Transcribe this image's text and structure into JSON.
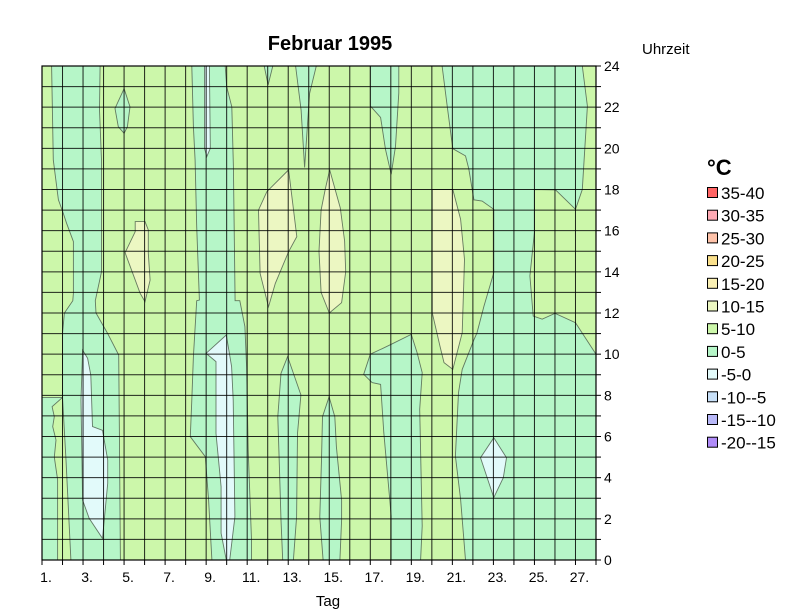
{
  "chart_data": {
    "type": "heatmap",
    "subtype": "filled-contour",
    "title": "Februar 1995",
    "xlabel": "Tag",
    "ylabel": "Uhrzeit",
    "xlim": [
      1,
      28
    ],
    "ylim": [
      0,
      24
    ],
    "x_ticks": [
      "1.",
      "3.",
      "5.",
      "7.",
      "9.",
      "11.",
      "13.",
      "15.",
      "17.",
      "19.",
      "21.",
      "23.",
      "25.",
      "27."
    ],
    "y_ticks": [
      "0",
      "2",
      "4",
      "6",
      "8",
      "10",
      "12",
      "14",
      "16",
      "18",
      "20",
      "22",
      "24"
    ],
    "y_axis_side": "right",
    "grid": true,
    "legend": {
      "title": "°C",
      "placement": "right",
      "entries": [
        {
          "label": "35-40",
          "color": "#ff6464"
        },
        {
          "label": "30-35",
          "color": "#ffaab4"
        },
        {
          "label": "25-30",
          "color": "#ffc3aa"
        },
        {
          "label": "20-25",
          "color": "#fae08c"
        },
        {
          "label": "15-20",
          "color": "#faf0b4"
        },
        {
          "label": "10-15",
          "color": "#ecf7c2"
        },
        {
          "label": "5-10",
          "color": "#ccf7aa"
        },
        {
          "label": "0-5",
          "color": "#b6f6c8"
        },
        {
          "label": "-5-0",
          "color": "#e2fafa"
        },
        {
          "label": "-10--5",
          "color": "#c8e0f8"
        },
        {
          "label": "-15--10",
          "color": "#b8b8f8"
        },
        {
          "label": "-20--15",
          "color": "#b08cf8"
        }
      ]
    },
    "background_class": "5-10",
    "regions": [
      {
        "class": "0-5",
        "points": [
          [
            1,
            0
          ],
          [
            1,
            24
          ],
          [
            3.83,
            24
          ],
          [
            3.8,
            21.86
          ],
          [
            3.9,
            19.43
          ],
          [
            3.9,
            14
          ],
          [
            3.6,
            12.6
          ],
          [
            3.63,
            12
          ],
          [
            4.2,
            11
          ],
          [
            4.74,
            9.96
          ],
          [
            4.77,
            6.15
          ],
          [
            4.82,
            0
          ]
        ]
      },
      {
        "class": "5-10",
        "points": [
          [
            1,
            24
          ],
          [
            1.47,
            24
          ],
          [
            1.55,
            19.43
          ],
          [
            1.8,
            17.5
          ],
          [
            2.04,
            16.84
          ],
          [
            2.2,
            16.36
          ],
          [
            2.53,
            15.47
          ],
          [
            2.53,
            12.96
          ],
          [
            2.5,
            12.6
          ],
          [
            2.09,
            12
          ],
          [
            2,
            11
          ],
          [
            2,
            7.9
          ],
          [
            1,
            7.9
          ]
        ]
      },
      {
        "class": "5-10",
        "points": [
          [
            2,
            7.9
          ],
          [
            1.49,
            7.45
          ],
          [
            1.6,
            6.96
          ],
          [
            1.52,
            6.48
          ],
          [
            1.68,
            5.83
          ],
          [
            1.6,
            5
          ],
          [
            1.76,
            3.9
          ],
          [
            1.76,
            0
          ],
          [
            2.41,
            0
          ],
          [
            2.17,
            4.86
          ]
        ]
      },
      {
        "class": "-5-0",
        "points": [
          [
            2.98,
            10.2
          ],
          [
            3.22,
            9.8
          ],
          [
            3.38,
            8.99
          ],
          [
            3.46,
            6.48
          ],
          [
            3.95,
            6.3
          ],
          [
            4.2,
            4.86
          ],
          [
            4.2,
            3.72
          ],
          [
            3.95,
            1.05
          ],
          [
            3.3,
            2.02
          ],
          [
            2.98,
            2.91
          ],
          [
            2.9,
            7.77
          ]
        ]
      },
      {
        "class": "0-5",
        "points": [
          [
            5,
            22.9
          ],
          [
            5.29,
            22.02
          ],
          [
            5.16,
            21.05
          ],
          [
            5,
            20.73
          ],
          [
            4.72,
            21.05
          ],
          [
            4.56,
            21.94
          ]
        ]
      },
      {
        "class": "10-15",
        "points": [
          [
            5.54,
            16.44
          ],
          [
            6.02,
            16.44
          ],
          [
            6.18,
            16.03
          ],
          [
            6.18,
            14.9
          ],
          [
            6.27,
            13.6
          ],
          [
            6.02,
            12.55
          ],
          [
            5.78,
            12.96
          ],
          [
            5.05,
            14.93
          ],
          [
            5.54,
            15.95
          ]
        ]
      },
      {
        "class": "0-5",
        "points": [
          [
            8.3,
            24
          ],
          [
            9.93,
            24
          ],
          [
            10,
            22.99
          ],
          [
            10.25,
            22.02
          ],
          [
            10.33,
            19.1
          ],
          [
            10.41,
            12.6
          ],
          [
            10.64,
            12.6
          ],
          [
            10.89,
            11.34
          ],
          [
            10.97,
            9.39
          ],
          [
            11.05,
            5.34
          ],
          [
            11.21,
            0.97
          ],
          [
            11.21,
            0
          ],
          [
            9.28,
            0
          ],
          [
            9.12,
            2.91
          ],
          [
            8.96,
            5.02
          ],
          [
            8.23,
            5.99
          ],
          [
            8.3,
            7.77
          ],
          [
            8.38,
            9.88
          ],
          [
            8.54,
            12.6
          ],
          [
            8.67,
            12.63
          ],
          [
            8.54,
            16.2
          ],
          [
            8.46,
            19.43
          ],
          [
            8.38,
            21.05
          ]
        ]
      },
      {
        "class": "-5-0",
        "points": [
          [
            8.92,
            24
          ],
          [
            9.16,
            24
          ],
          [
            9.2,
            20
          ],
          [
            9.03,
            19.6
          ],
          [
            8.92,
            20
          ]
        ]
      },
      {
        "class": "-5-0",
        "points": [
          [
            9.98,
            10.93
          ],
          [
            9,
            10.04
          ],
          [
            9.48,
            9.64
          ],
          [
            9.48,
            6.15
          ],
          [
            9.73,
            3.56
          ],
          [
            9.73,
            1.3
          ],
          [
            9.98,
            0
          ],
          [
            10.15,
            0
          ],
          [
            10.4,
            2.1
          ],
          [
            10.32,
            7.77
          ],
          [
            10.24,
            9.39
          ]
        ]
      },
      {
        "class": "0-5",
        "points": [
          [
            11.83,
            24
          ],
          [
            12.25,
            24
          ],
          [
            12.02,
            23.08
          ]
        ]
      },
      {
        "class": "10-15",
        "points": [
          [
            13.02,
            18.95
          ],
          [
            13.42,
            15.71
          ],
          [
            13.02,
            14.98
          ],
          [
            12.37,
            13.44
          ],
          [
            12.04,
            12.3
          ],
          [
            11.63,
            13.93
          ],
          [
            11.55,
            17
          ],
          [
            11.96,
            17.9
          ]
        ]
      },
      {
        "class": "0-5",
        "points": [
          [
            12.97,
            9.88
          ],
          [
            13.62,
            8.02
          ],
          [
            13.45,
            6.15
          ],
          [
            13.41,
            2.1
          ],
          [
            13.25,
            0
          ],
          [
            12.73,
            0
          ],
          [
            12.65,
            1.94
          ],
          [
            12.57,
            4.53
          ],
          [
            12.49,
            6.96
          ],
          [
            12.65,
            9.07
          ]
        ]
      },
      {
        "class": "0-5",
        "points": [
          [
            13.36,
            24
          ],
          [
            14.37,
            24
          ],
          [
            14.04,
            22.67
          ],
          [
            13.8,
            19.07
          ],
          [
            13.63,
            21.86
          ]
        ]
      },
      {
        "class": "10-15",
        "points": [
          [
            15.02,
            18.95
          ],
          [
            15.54,
            17.1
          ],
          [
            15.75,
            15.5
          ],
          [
            15.8,
            14
          ],
          [
            15.6,
            12.5
          ],
          [
            15,
            12
          ],
          [
            14.6,
            13
          ],
          [
            14.5,
            15
          ],
          [
            14.6,
            17
          ],
          [
            14.8,
            18
          ]
        ]
      },
      {
        "class": "0-5",
        "points": [
          [
            14.99,
            7.93
          ],
          [
            15.27,
            6.96
          ],
          [
            15.35,
            5.5
          ],
          [
            15.6,
            2.91
          ],
          [
            15.6,
            1.94
          ],
          [
            15.52,
            0
          ],
          [
            14.7,
            0
          ],
          [
            14.54,
            2.1
          ],
          [
            14.62,
            4.86
          ],
          [
            14.67,
            6.96
          ]
        ]
      },
      {
        "class": "0-5",
        "points": [
          [
            17,
            24
          ],
          [
            17,
            22.06
          ],
          [
            17.5,
            21.5
          ],
          [
            17.74,
            19.95
          ],
          [
            18.02,
            18.74
          ],
          [
            18.23,
            20.1
          ],
          [
            18.39,
            22.7
          ],
          [
            18.39,
            24
          ]
        ]
      },
      {
        "class": "0-5",
        "points": [
          [
            17,
            10
          ],
          [
            16.68,
            9.02
          ],
          [
            17.09,
            8.62
          ],
          [
            17.5,
            8.53
          ],
          [
            17.66,
            6.19
          ],
          [
            18.02,
            2.14
          ],
          [
            18.02,
            0
          ],
          [
            19.45,
            0
          ],
          [
            19.53,
            1.65
          ],
          [
            19.41,
            7.32
          ],
          [
            19.53,
            9.1
          ],
          [
            19.28,
            10.07
          ],
          [
            19,
            10.96
          ],
          [
            18.02,
            10.48
          ],
          [
            17.5,
            10.23
          ]
        ]
      },
      {
        "class": "0-5",
        "points": [
          [
            20.5,
            24
          ],
          [
            28,
            24
          ],
          [
            28,
            0
          ],
          [
            21.64,
            0
          ],
          [
            21.4,
            2.95
          ],
          [
            21.15,
            5.05
          ],
          [
            21.3,
            8.13
          ],
          [
            21.48,
            9.26
          ],
          [
            22.05,
            10.7
          ],
          [
            22.2,
            11.04
          ],
          [
            22.54,
            12.34
          ],
          [
            23.02,
            13.96
          ],
          [
            23.02,
            17.04
          ],
          [
            22.45,
            17.44
          ],
          [
            22.05,
            17.5
          ],
          [
            21.8,
            19
          ],
          [
            21.64,
            19.63
          ],
          [
            21.02,
            19.98
          ],
          [
            20.75,
            22.05
          ]
        ]
      },
      {
        "class": "5-10",
        "points": [
          [
            25,
            18
          ],
          [
            26.03,
            17.98
          ],
          [
            27,
            17.04
          ],
          [
            27.33,
            18
          ],
          [
            27.58,
            22.05
          ],
          [
            27.33,
            24
          ],
          [
            28,
            24
          ],
          [
            28,
            10
          ],
          [
            27,
            11.53
          ],
          [
            26,
            11.98
          ],
          [
            25.38,
            11.7
          ],
          [
            24.94,
            11.85
          ],
          [
            24.78,
            13.8
          ],
          [
            25,
            15.9
          ]
        ]
      },
      {
        "class": "10-15",
        "points": [
          [
            20.02,
            18
          ],
          [
            21.02,
            18
          ],
          [
            21.4,
            16.55
          ],
          [
            21.59,
            14.6
          ],
          [
            21.48,
            11.04
          ],
          [
            21.02,
            9.26
          ],
          [
            20.59,
            9.59
          ],
          [
            20.39,
            10.4
          ],
          [
            20.02,
            12
          ]
        ]
      },
      {
        "class": "-5-0",
        "points": [
          [
            23.02,
            5.94
          ],
          [
            23.64,
            4.97
          ],
          [
            23.48,
            4
          ],
          [
            23.02,
            3.03
          ],
          [
            22.37,
            4.97
          ]
        ]
      }
    ]
  }
}
